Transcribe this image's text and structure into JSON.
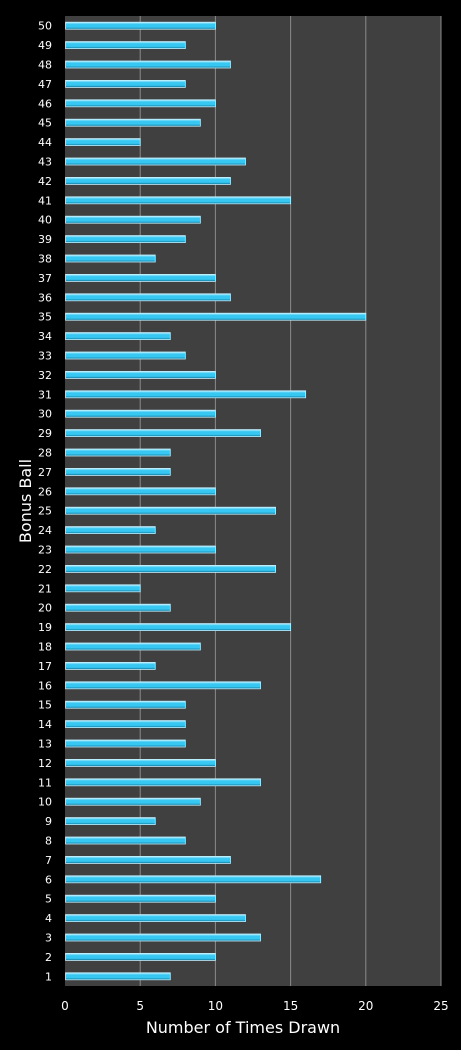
{
  "chart_data": {
    "type": "bar",
    "orientation": "horizontal",
    "xlabel": "Number of Times Drawn",
    "ylabel": "Bonus Ball",
    "xlim": [
      0,
      25
    ],
    "xticks": [
      0,
      5,
      10,
      15,
      20,
      25
    ],
    "grid": "vertical",
    "categories": [
      "1",
      "2",
      "3",
      "4",
      "5",
      "6",
      "7",
      "8",
      "9",
      "10",
      "11",
      "12",
      "13",
      "14",
      "15",
      "16",
      "17",
      "18",
      "19",
      "20",
      "21",
      "22",
      "23",
      "24",
      "25",
      "26",
      "27",
      "28",
      "29",
      "30",
      "31",
      "32",
      "33",
      "34",
      "35",
      "36",
      "37",
      "38",
      "39",
      "40",
      "41",
      "42",
      "43",
      "44",
      "45",
      "46",
      "47",
      "48",
      "49",
      "50"
    ],
    "values": [
      7,
      10,
      13,
      12,
      10,
      17,
      11,
      8,
      6,
      9,
      13,
      10,
      8,
      8,
      8,
      13,
      6,
      9,
      15,
      7,
      5,
      14,
      10,
      6,
      14,
      10,
      7,
      7,
      13,
      10,
      16,
      10,
      8,
      7,
      20,
      11,
      10,
      6,
      8,
      9,
      15,
      11,
      12,
      5,
      9,
      10,
      8,
      11,
      8,
      10
    ],
    "colors": {
      "background": "#000000",
      "plot_area": "#404040",
      "grid": "#8a8a8a",
      "bar_light": "#bff0ff",
      "bar_mid": "#36c8f2",
      "bar_dark": "#0a6f95",
      "text": "#ffffff"
    }
  }
}
